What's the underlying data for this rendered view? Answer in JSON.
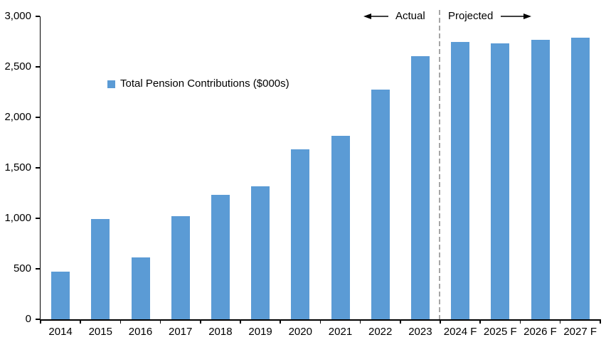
{
  "chart": {
    "legend": {
      "label": "Total Pension Contributions ($000s)",
      "marker_color": "#5B9BD5"
    },
    "annotations": {
      "actual_label": "Actual",
      "projected_label": "Projected"
    },
    "colors": {
      "bar": "#5B9BD5",
      "axis": "#000000",
      "divider": "#A6A6A6",
      "text": "#000000",
      "background": "#FFFFFF"
    }
  },
  "chart_data": {
    "type": "bar",
    "title": "",
    "series_name": "Total Pension Contributions ($000s)",
    "categories": [
      "2014",
      "2015",
      "2016",
      "2017",
      "2018",
      "2019",
      "2020",
      "2021",
      "2022",
      "2023",
      "2024 F",
      "2025 F",
      "2026 F",
      "2027 F"
    ],
    "values": [
      470,
      990,
      610,
      1020,
      1230,
      1320,
      1680,
      1815,
      2275,
      2605,
      2745,
      2735,
      2765,
      2790
    ],
    "ylim": [
      0,
      3000
    ],
    "y_tick_step": 500,
    "y_tick_labels": [
      "0",
      "500",
      "1,000",
      "1,500",
      "2,000",
      "2,500",
      "3,000"
    ],
    "grid": false,
    "legend_position": "inside-upper-left",
    "divider_after_category": "2023",
    "actual_categories": [
      "2014",
      "2015",
      "2016",
      "2017",
      "2018",
      "2019",
      "2020",
      "2021",
      "2022",
      "2023"
    ],
    "projected_categories": [
      "2024 F",
      "2025 F",
      "2026 F",
      "2027 F"
    ]
  }
}
